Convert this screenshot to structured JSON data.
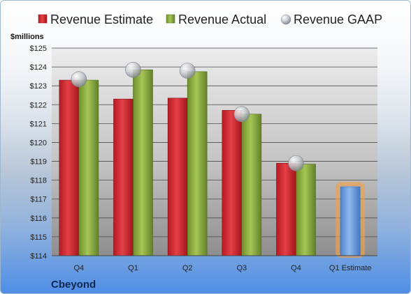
{
  "chart_data": {
    "type": "bar",
    "unit_label": "$millions",
    "company": "Cbeyond",
    "categories": [
      "Q4",
      "Q1",
      "Q2",
      "Q3",
      "Q4",
      "Q1 Estimate"
    ],
    "y_ticks": [
      "$114",
      "$115",
      "$116",
      "$117",
      "$118",
      "$119",
      "$120",
      "$121",
      "$122",
      "$123",
      "$124",
      "$125"
    ],
    "ylim": [
      114,
      125
    ],
    "grid": true,
    "legend_position": "top",
    "series": [
      {
        "name": "Revenue Estimate",
        "kind": "bar",
        "color": "#cc1f27",
        "values": [
          123.3,
          122.3,
          122.35,
          121.7,
          118.9,
          null
        ]
      },
      {
        "name": "Revenue Actual",
        "kind": "bar",
        "color": "#86a83a",
        "values": [
          123.3,
          123.85,
          123.75,
          121.5,
          118.85,
          null
        ]
      },
      {
        "name": "Revenue GAAP",
        "kind": "marker",
        "color": "#b8bcc4",
        "values": [
          123.35,
          123.85,
          123.8,
          121.5,
          118.9,
          null
        ]
      },
      {
        "name": "Q1 Estimate",
        "kind": "bar",
        "color": "#6f9fdc",
        "highlight": "#f0a24a",
        "values": [
          null,
          null,
          null,
          null,
          null,
          117.65
        ]
      }
    ]
  }
}
